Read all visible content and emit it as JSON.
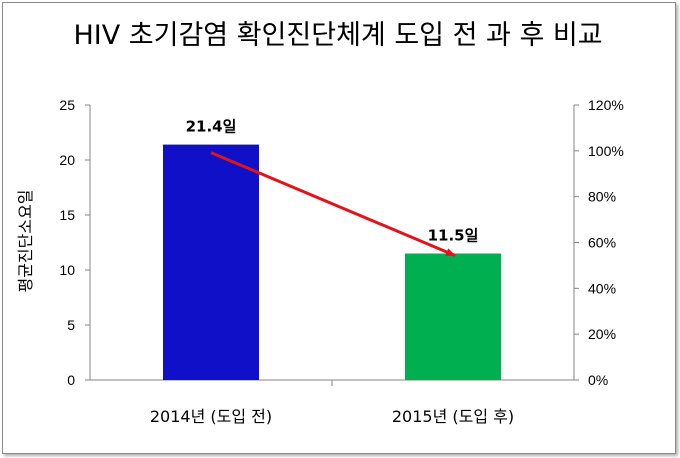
{
  "chart_data": {
    "type": "bar",
    "title": "HIV 초기감염 확인진단체계 도입 전 과 후 비교",
    "ylabel": "평균진단소요일",
    "categories": [
      "2014년 (도입 전)",
      "2015년 (도입 후)"
    ],
    "values": [
      21.4,
      11.5
    ],
    "data_labels": [
      "21.4일",
      "11.5일"
    ],
    "bar_colors": [
      "#1010c8",
      "#00b050"
    ],
    "arrow_color": "#e0141c",
    "ylim": [
      0,
      25
    ],
    "yticks": [
      "0",
      "5",
      "10",
      "15",
      "20",
      "25"
    ],
    "y2lim": [
      0,
      1.2
    ],
    "y2ticks": [
      "0%",
      "20%",
      "40%",
      "60%",
      "80%",
      "100%",
      "120%"
    ],
    "grid": false
  }
}
